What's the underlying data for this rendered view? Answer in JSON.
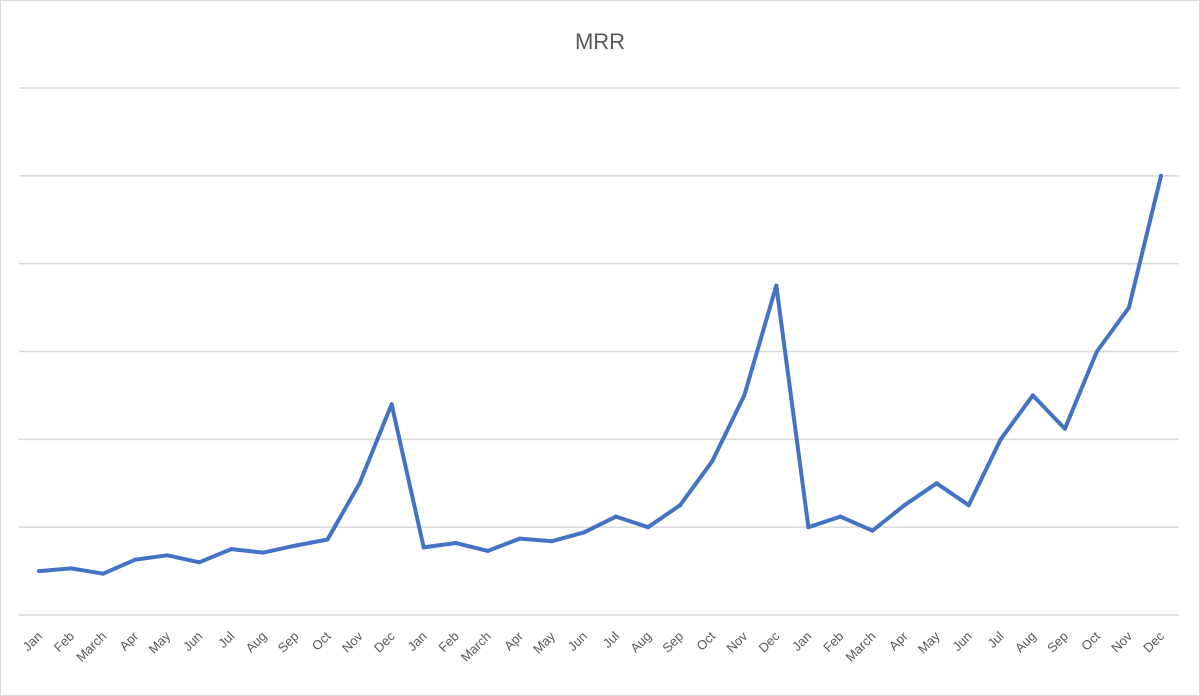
{
  "chart_data": {
    "type": "line",
    "title": "MRR",
    "xlabel": "",
    "ylabel": "",
    "categories": [
      "Jan",
      "Feb",
      "March",
      "Apr",
      "May",
      "Jun",
      "Jul",
      "Aug",
      "Sep",
      "Oct",
      "Nov",
      "Dec",
      "Jan",
      "Feb",
      "March",
      "Apr",
      "May",
      "Jun",
      "Jul",
      "Aug",
      "Sep",
      "Oct",
      "Nov",
      "Dec",
      "Jan",
      "Feb",
      "March",
      "Apr",
      "May",
      "Jun",
      "Jul",
      "Aug",
      "Sep",
      "Oct",
      "Nov",
      "Dec"
    ],
    "series": [
      {
        "values": [
          0.5,
          0.53,
          0.47,
          0.63,
          0.68,
          0.6,
          0.75,
          0.71,
          0.79,
          0.86,
          1.5,
          2.4,
          0.77,
          0.82,
          0.73,
          0.87,
          0.84,
          0.94,
          1.12,
          1.0,
          1.25,
          1.75,
          2.5,
          3.75,
          1.0,
          1.12,
          0.96,
          1.25,
          1.5,
          1.25,
          2.0,
          2.5,
          2.12,
          3.0,
          3.5,
          5.0
        ],
        "color": "#4472c4"
      }
    ],
    "ylim": [
      0,
      6
    ],
    "y_gridlines": [
      0,
      1,
      2,
      3,
      4,
      5,
      6
    ],
    "y_tick_labels_shown": false,
    "grid": true,
    "legend": "none"
  }
}
